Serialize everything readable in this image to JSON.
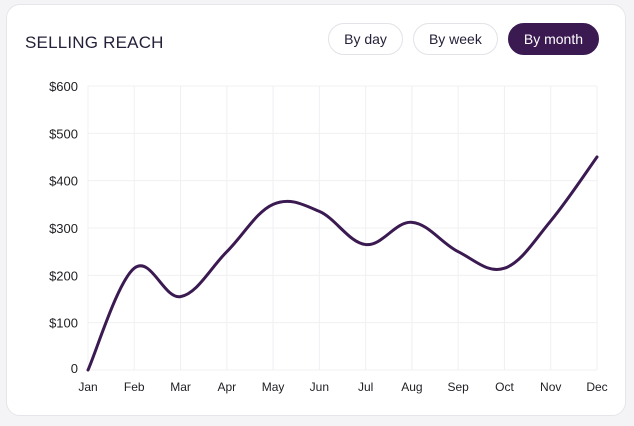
{
  "card": {
    "title": "SELLING REACH"
  },
  "toggles": [
    {
      "label": "By day",
      "active": false
    },
    {
      "label": "By week",
      "active": false
    },
    {
      "label": "By month",
      "active": true
    }
  ],
  "colors": {
    "accent": "#3b1a52",
    "line": "#3b1a52",
    "grid": "#f0f0f3"
  },
  "chart_data": {
    "type": "line",
    "title": "",
    "xlabel": "",
    "ylabel": "",
    "categories": [
      "Jan",
      "Feb",
      "Mar",
      "Apr",
      "May",
      "Jun",
      "Jul",
      "Aug",
      "Sep",
      "Oct",
      "Nov",
      "Dec"
    ],
    "series": [
      {
        "values": [
          0,
          215,
          155,
          250,
          350,
          335,
          265,
          312,
          250,
          215,
          315,
          450
        ]
      }
    ],
    "ylim": [
      0,
      600
    ],
    "yticks": [
      0,
      100,
      200,
      300,
      400,
      500,
      600
    ],
    "ytick_labels": [
      "0",
      "$100",
      "$200",
      "$300",
      "$400",
      "$500",
      "$600"
    ],
    "grid": true,
    "smooth": true
  }
}
